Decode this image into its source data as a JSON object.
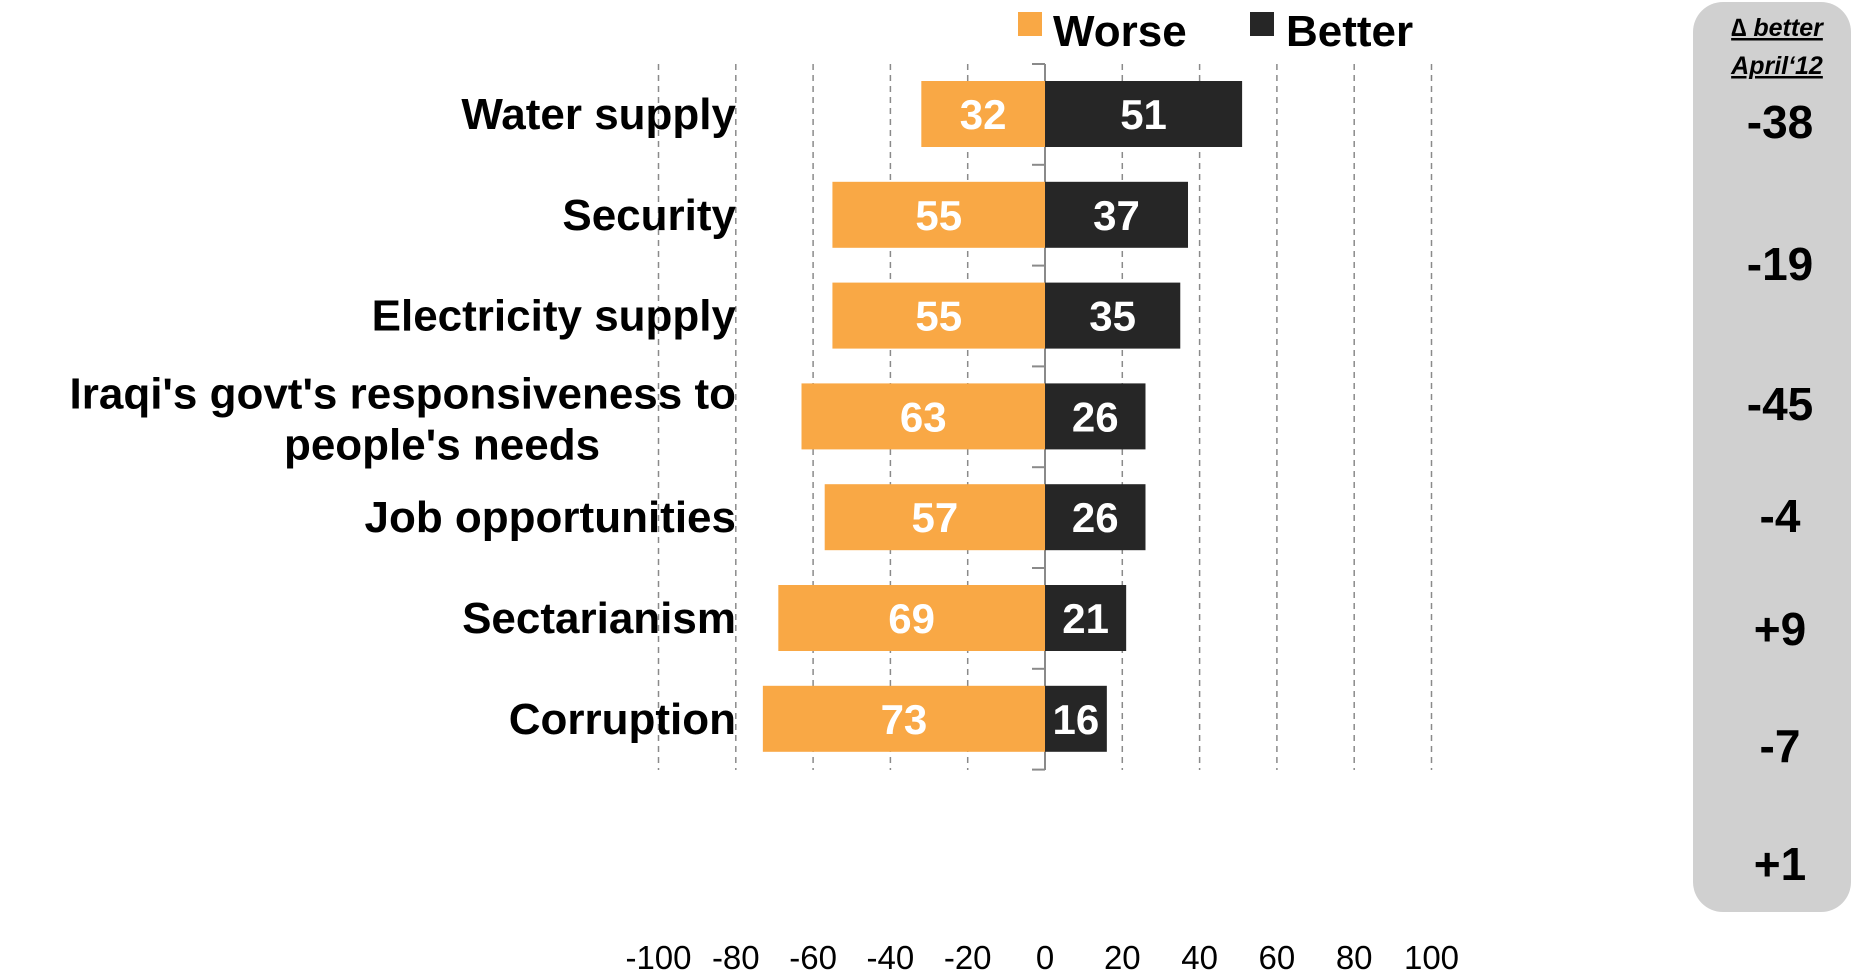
{
  "chart_data": {
    "type": "bar",
    "orientation": "horizontal-diverging",
    "categories": [
      "Water supply",
      "Security",
      "Electricity supply",
      "Iraqi's govt's responsiveness to people's needs",
      "Job opportunities",
      "Sectarianism",
      "Corruption"
    ],
    "category_label_lines": [
      [
        "Water supply"
      ],
      [
        "Security"
      ],
      [
        "Electricity supply"
      ],
      [
        "Iraqi's govt's responsiveness to",
        "people's needs"
      ],
      [
        "Job opportunities"
      ],
      [
        "Sectarianism"
      ],
      [
        "Corruption"
      ]
    ],
    "series": [
      {
        "name": "Worse",
        "values": [
          32,
          55,
          55,
          63,
          57,
          69,
          73
        ],
        "color": "#F9A845",
        "direction": "negative"
      },
      {
        "name": "Better",
        "values": [
          51,
          37,
          35,
          26,
          26,
          21,
          16
        ],
        "color": "#262626",
        "direction": "positive"
      }
    ],
    "xlim": [
      -100,
      100
    ],
    "xticks": [
      -100,
      -80,
      -60,
      -40,
      -20,
      0,
      20,
      40,
      60,
      80,
      100
    ],
    "grid": "vertical dashed",
    "legend": "top",
    "side_panel": {
      "header_line1": "∆ better",
      "header_line2": "April‘12",
      "values": [
        "-38",
        "-19",
        "-45",
        "-4",
        "+9",
        "-7",
        "+1"
      ],
      "background": "#D0D0D0"
    }
  }
}
